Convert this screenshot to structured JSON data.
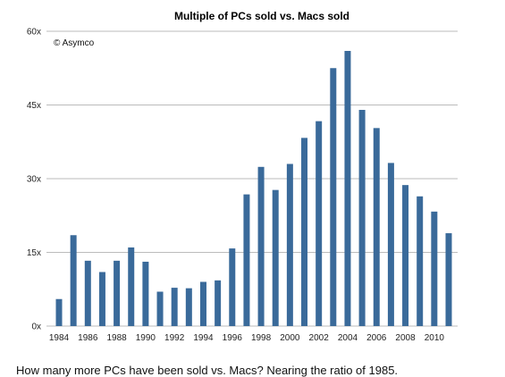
{
  "chart_data": {
    "type": "bar",
    "title": "Multiple of PCs sold vs. Macs sold",
    "annotation": "© Asymco",
    "xlabel": "",
    "ylabel": "",
    "ylim": [
      0,
      60
    ],
    "y_ticks": [
      0,
      15,
      30,
      45,
      60
    ],
    "y_tick_labels": [
      "0x",
      "15x",
      "30x",
      "45x",
      "60x"
    ],
    "x_tick_labels": [
      "1984",
      "1986",
      "1988",
      "1990",
      "1992",
      "1994",
      "1996",
      "1998",
      "2000",
      "2002",
      "2004",
      "2006",
      "2008",
      "2010"
    ],
    "categories": [
      "1984",
      "1985",
      "1986",
      "1987",
      "1988",
      "1989",
      "1990",
      "1991",
      "1992",
      "1993",
      "1994",
      "1995",
      "1996",
      "1997",
      "1998",
      "1999",
      "2000",
      "2001",
      "2002",
      "2003",
      "2004",
      "2005",
      "2006",
      "2007",
      "2008",
      "2009",
      "2010",
      "2011"
    ],
    "values": [
      5.5,
      18.5,
      13.3,
      11.0,
      13.3,
      16.0,
      13.1,
      7.0,
      7.8,
      7.7,
      9.0,
      9.3,
      15.8,
      26.8,
      32.4,
      27.7,
      33.0,
      38.3,
      41.7,
      52.5,
      56.0,
      44.0,
      40.3,
      33.2,
      28.7,
      26.4,
      23.3,
      18.9
    ],
    "grid": true,
    "bar_color": "#3a6a9a",
    "grid_color": "#bbbbbb"
  },
  "caption": "How many more PCs have been sold vs. Macs? Nearing the ratio of 1985."
}
